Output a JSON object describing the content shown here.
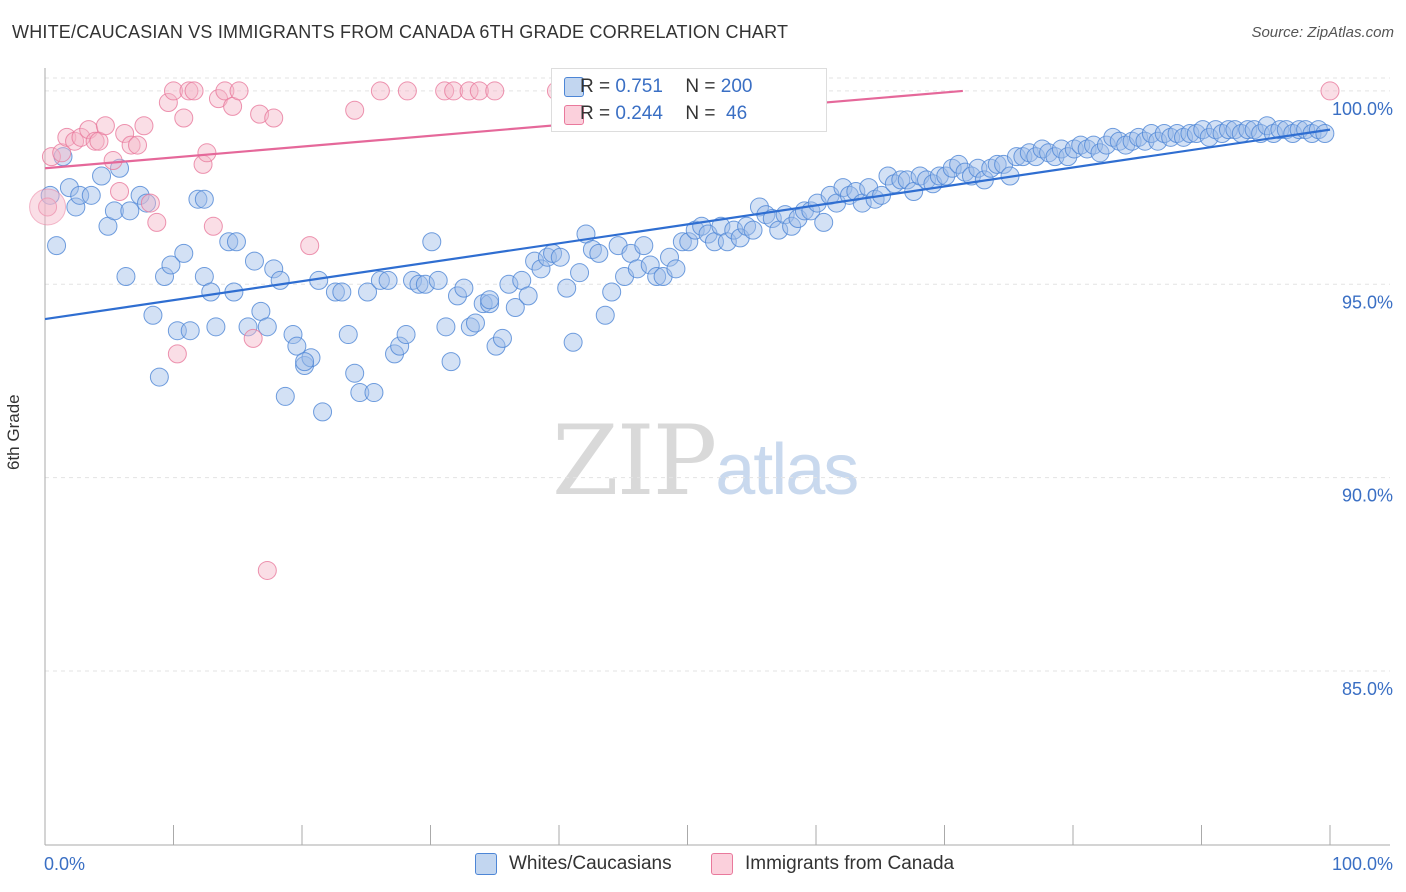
{
  "title": "WHITE/CAUCASIAN VS IMMIGRANTS FROM CANADA 6TH GRADE CORRELATION CHART",
  "source": "Source: ZipAtlas.com",
  "watermark": {
    "zip": "ZIP",
    "atlas": "atlas"
  },
  "legend": {
    "r_label": "R = ",
    "n_label": "N = ",
    "series": [
      {
        "r": "0.751",
        "n": "200",
        "color": "#9dbde8",
        "stroke": "#4d86d6"
      },
      {
        "r": "0.244",
        "n": " 46",
        "color": "#f5b6c8",
        "stroke": "#e9799c"
      }
    ]
  },
  "bottom_legend": [
    "Whites/Caucasians",
    "Immigrants from Canada"
  ],
  "chart_data": {
    "type": "scatter",
    "title": "WHITE/CAUCASIAN VS IMMIGRANTS FROM CANADA 6TH GRADE CORRELATION CHART",
    "xlabel": "",
    "ylabel": "6th Grade",
    "xlim": [
      0,
      100
    ],
    "ylim": [
      80.5,
      100.8
    ],
    "x_tick_labels": [
      "0.0%",
      "100.0%"
    ],
    "y_ticks": [
      85,
      90,
      95,
      100
    ],
    "y_tick_labels": [
      "85.0%",
      "90.0%",
      "95.0%",
      "100.0%"
    ],
    "grid": true,
    "legend_placement": "top-center",
    "series": [
      {
        "name": "Whites/Caucasians",
        "color": "#9dbde8",
        "stroke": "#4d86d6",
        "trend": {
          "x": [
            0,
            100
          ],
          "y": [
            94.1,
            99.0
          ]
        },
        "points": [
          [
            0.4,
            97.3
          ],
          [
            0.9,
            96.0
          ],
          [
            1.4,
            98.3
          ],
          [
            1.9,
            97.5
          ],
          [
            2.4,
            97.0
          ],
          [
            2.7,
            97.3
          ],
          [
            3.6,
            97.3
          ],
          [
            4.4,
            97.8
          ],
          [
            4.9,
            96.5
          ],
          [
            5.4,
            96.9
          ],
          [
            5.8,
            98.0
          ],
          [
            6.3,
            95.2
          ],
          [
            6.6,
            96.9
          ],
          [
            7.4,
            97.3
          ],
          [
            7.9,
            97.1
          ],
          [
            8.4,
            94.2
          ],
          [
            8.9,
            92.6
          ],
          [
            9.3,
            95.2
          ],
          [
            9.8,
            95.5
          ],
          [
            10.3,
            93.8
          ],
          [
            10.8,
            95.8
          ],
          [
            11.3,
            93.8
          ],
          [
            11.9,
            97.2
          ],
          [
            12.4,
            95.2
          ],
          [
            12.9,
            94.8
          ],
          [
            13.3,
            93.9
          ],
          [
            14.3,
            96.1
          ],
          [
            14.7,
            94.8
          ],
          [
            14.9,
            96.1
          ],
          [
            15.8,
            93.9
          ],
          [
            16.3,
            95.6
          ],
          [
            16.8,
            94.3
          ],
          [
            17.3,
            93.9
          ],
          [
            17.8,
            95.4
          ],
          [
            18.3,
            95.1
          ],
          [
            18.7,
            92.1
          ],
          [
            19.3,
            93.7
          ],
          [
            19.6,
            93.4
          ],
          [
            20.2,
            92.9
          ],
          [
            20.7,
            93.1
          ],
          [
            21.3,
            95.1
          ],
          [
            21.6,
            91.7
          ],
          [
            22.6,
            94.8
          ],
          [
            23.1,
            94.8
          ],
          [
            23.6,
            93.7
          ],
          [
            24.1,
            92.7
          ],
          [
            24.5,
            92.2
          ],
          [
            25.1,
            94.8
          ],
          [
            25.6,
            92.2
          ],
          [
            26.1,
            95.1
          ],
          [
            26.7,
            95.1
          ],
          [
            27.2,
            93.2
          ],
          [
            27.6,
            93.4
          ],
          [
            28.1,
            93.7
          ],
          [
            28.6,
            95.1
          ],
          [
            29.1,
            95.0
          ],
          [
            29.6,
            95.0
          ],
          [
            30.1,
            96.1
          ],
          [
            30.6,
            95.1
          ],
          [
            31.2,
            93.9
          ],
          [
            31.6,
            93.0
          ],
          [
            32.1,
            94.7
          ],
          [
            32.6,
            94.9
          ],
          [
            33.1,
            93.9
          ],
          [
            33.5,
            94.0
          ],
          [
            34.1,
            94.5
          ],
          [
            34.6,
            94.5
          ],
          [
            35.1,
            93.4
          ],
          [
            35.6,
            93.6
          ],
          [
            36.1,
            95.0
          ],
          [
            36.6,
            94.4
          ],
          [
            37.1,
            95.1
          ],
          [
            37.6,
            94.7
          ],
          [
            38.1,
            95.6
          ],
          [
            38.6,
            95.4
          ],
          [
            39.1,
            95.7
          ],
          [
            39.5,
            95.8
          ],
          [
            40.1,
            95.7
          ],
          [
            40.6,
            94.9
          ],
          [
            41.1,
            93.5
          ],
          [
            41.6,
            95.3
          ],
          [
            42.1,
            96.3
          ],
          [
            42.6,
            95.9
          ],
          [
            43.1,
            95.8
          ],
          [
            43.6,
            94.2
          ],
          [
            44.1,
            94.8
          ],
          [
            44.6,
            96.0
          ],
          [
            45.1,
            95.2
          ],
          [
            45.6,
            95.8
          ],
          [
            46.1,
            95.4
          ],
          [
            46.6,
            96.0
          ],
          [
            47.1,
            95.5
          ],
          [
            47.6,
            95.2
          ],
          [
            48.1,
            95.2
          ],
          [
            48.6,
            95.7
          ],
          [
            49.1,
            95.4
          ],
          [
            49.6,
            96.1
          ],
          [
            50.1,
            96.1
          ],
          [
            50.6,
            96.4
          ],
          [
            51.1,
            96.5
          ],
          [
            51.6,
            96.3
          ],
          [
            52.1,
            96.1
          ],
          [
            52.6,
            96.5
          ],
          [
            53.1,
            96.1
          ],
          [
            53.6,
            96.4
          ],
          [
            54.1,
            96.2
          ],
          [
            54.6,
            96.5
          ],
          [
            55.1,
            96.4
          ],
          [
            55.6,
            97.0
          ],
          [
            56.1,
            96.8
          ],
          [
            56.6,
            96.7
          ],
          [
            57.1,
            96.4
          ],
          [
            57.6,
            96.8
          ],
          [
            58.1,
            96.5
          ],
          [
            58.6,
            96.7
          ],
          [
            59.1,
            96.9
          ],
          [
            59.6,
            96.9
          ],
          [
            60.1,
            97.1
          ],
          [
            60.6,
            96.6
          ],
          [
            61.1,
            97.3
          ],
          [
            61.6,
            97.1
          ],
          [
            62.1,
            97.5
          ],
          [
            62.6,
            97.3
          ],
          [
            63.1,
            97.4
          ],
          [
            63.6,
            97.1
          ],
          [
            64.1,
            97.5
          ],
          [
            64.6,
            97.2
          ],
          [
            65.1,
            97.3
          ],
          [
            65.6,
            97.8
          ],
          [
            66.1,
            97.6
          ],
          [
            66.6,
            97.7
          ],
          [
            67.1,
            97.7
          ],
          [
            67.6,
            97.4
          ],
          [
            68.1,
            97.8
          ],
          [
            68.6,
            97.7
          ],
          [
            69.1,
            97.6
          ],
          [
            69.6,
            97.8
          ],
          [
            70.1,
            97.8
          ],
          [
            70.6,
            98.0
          ],
          [
            71.1,
            98.1
          ],
          [
            71.6,
            97.9
          ],
          [
            72.1,
            97.8
          ],
          [
            72.6,
            98.0
          ],
          [
            73.1,
            97.7
          ],
          [
            73.6,
            98.0
          ],
          [
            74.1,
            98.1
          ],
          [
            74.6,
            98.1
          ],
          [
            75.1,
            97.8
          ],
          [
            75.6,
            98.3
          ],
          [
            76.1,
            98.3
          ],
          [
            76.6,
            98.4
          ],
          [
            77.1,
            98.3
          ],
          [
            77.6,
            98.5
          ],
          [
            78.1,
            98.4
          ],
          [
            78.6,
            98.3
          ],
          [
            79.1,
            98.5
          ],
          [
            79.6,
            98.3
          ],
          [
            80.1,
            98.5
          ],
          [
            80.6,
            98.6
          ],
          [
            81.1,
            98.5
          ],
          [
            81.6,
            98.6
          ],
          [
            82.1,
            98.4
          ],
          [
            82.6,
            98.6
          ],
          [
            83.1,
            98.8
          ],
          [
            83.6,
            98.7
          ],
          [
            84.1,
            98.6
          ],
          [
            84.6,
            98.7
          ],
          [
            85.1,
            98.8
          ],
          [
            85.6,
            98.7
          ],
          [
            86.1,
            98.9
          ],
          [
            86.6,
            98.7
          ],
          [
            87.1,
            98.9
          ],
          [
            87.6,
            98.8
          ],
          [
            88.1,
            98.9
          ],
          [
            88.6,
            98.8
          ],
          [
            89.1,
            98.9
          ],
          [
            89.6,
            98.9
          ],
          [
            90.1,
            99.0
          ],
          [
            90.6,
            98.8
          ],
          [
            91.1,
            99.0
          ],
          [
            91.6,
            98.9
          ],
          [
            92.1,
            99.0
          ],
          [
            92.6,
            99.0
          ],
          [
            93.1,
            98.9
          ],
          [
            93.6,
            99.0
          ],
          [
            94.1,
            99.0
          ],
          [
            94.6,
            98.9
          ],
          [
            95.1,
            99.1
          ],
          [
            95.6,
            98.9
          ],
          [
            96.1,
            99.0
          ],
          [
            96.6,
            99.0
          ],
          [
            97.1,
            98.9
          ],
          [
            97.6,
            99.0
          ],
          [
            98.1,
            99.0
          ],
          [
            98.6,
            98.9
          ],
          [
            99.1,
            99.0
          ],
          [
            99.6,
            98.9
          ],
          [
            12.4,
            97.2
          ],
          [
            20.2,
            93.0
          ],
          [
            34.6,
            94.6
          ]
        ]
      },
      {
        "name": "Immigrants from Canada",
        "color": "#f5b6c8",
        "stroke": "#e9799c",
        "trend": {
          "x": [
            0,
            100
          ],
          "y": [
            98.0,
            100.8
          ]
        },
        "points": [
          [
            0.2,
            97.0
          ],
          [
            0.5,
            98.3
          ],
          [
            1.3,
            98.4
          ],
          [
            1.7,
            98.8
          ],
          [
            2.3,
            98.7
          ],
          [
            2.8,
            98.8
          ],
          [
            3.4,
            99.0
          ],
          [
            3.9,
            98.7
          ],
          [
            4.2,
            98.7
          ],
          [
            4.7,
            99.1
          ],
          [
            5.3,
            98.2
          ],
          [
            5.8,
            97.4
          ],
          [
            6.2,
            98.9
          ],
          [
            6.7,
            98.6
          ],
          [
            7.2,
            98.6
          ],
          [
            7.7,
            99.1
          ],
          [
            8.2,
            97.1
          ],
          [
            8.7,
            96.6
          ],
          [
            9.6,
            99.7
          ],
          [
            10.0,
            100.0
          ],
          [
            10.3,
            93.2
          ],
          [
            10.8,
            99.3
          ],
          [
            11.2,
            100.0
          ],
          [
            11.6,
            100.0
          ],
          [
            12.3,
            98.1
          ],
          [
            12.6,
            98.4
          ],
          [
            13.1,
            96.5
          ],
          [
            13.5,
            99.8
          ],
          [
            14.0,
            100.0
          ],
          [
            14.6,
            99.6
          ],
          [
            15.1,
            100.0
          ],
          [
            16.2,
            93.6
          ],
          [
            16.7,
            99.4
          ],
          [
            17.3,
            87.6
          ],
          [
            17.8,
            99.3
          ],
          [
            20.6,
            96.0
          ],
          [
            24.1,
            99.5
          ],
          [
            26.1,
            100.0
          ],
          [
            28.2,
            100.0
          ],
          [
            31.1,
            100.0
          ],
          [
            31.8,
            100.0
          ],
          [
            33.0,
            100.0
          ],
          [
            33.8,
            100.0
          ],
          [
            35.0,
            100.0
          ],
          [
            39.8,
            100.0
          ],
          [
            100.0,
            100.0
          ]
        ]
      }
    ]
  }
}
